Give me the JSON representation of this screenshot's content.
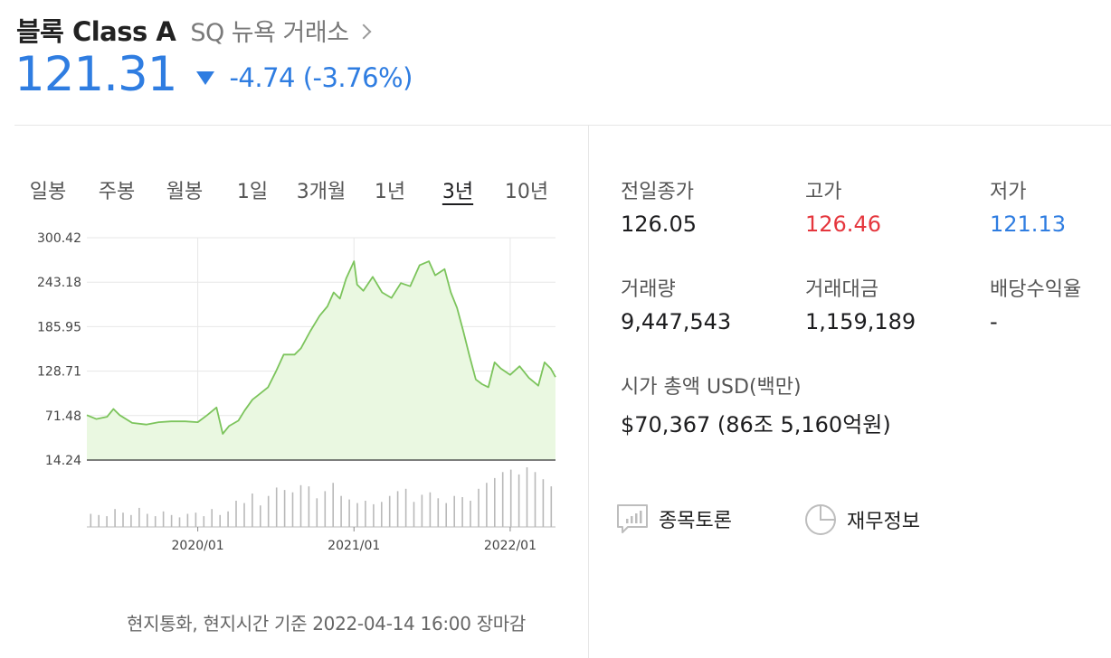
{
  "header": {
    "name": "블록 Class A",
    "exchange": "SQ 뉴욕 거래소",
    "price": "121.31",
    "change": "-4.74 (-3.76%)"
  },
  "tabs": [
    {
      "label": "일봉",
      "active": false
    },
    {
      "label": "주봉",
      "active": false
    },
    {
      "label": "월봉",
      "active": false
    },
    {
      "label": "1일",
      "active": false
    },
    {
      "label": "3개월",
      "active": false
    },
    {
      "label": "1년",
      "active": false
    },
    {
      "label": "3년",
      "active": true
    },
    {
      "label": "10년",
      "active": false
    }
  ],
  "stats": {
    "prev_close": {
      "label": "전일종가",
      "value": "126.05"
    },
    "high": {
      "label": "고가",
      "value": "126.46"
    },
    "low": {
      "label": "저가",
      "value": "121.13"
    },
    "volume": {
      "label": "거래량",
      "value": "9,447,543"
    },
    "turnover": {
      "label": "거래대금",
      "value": "1,159,189"
    },
    "dividend_yield": {
      "label": "배당수익율",
      "value": "-"
    },
    "market_cap": {
      "label": "시가 총액 USD(백만)",
      "value": "$70,367 (86조 5,160억원)"
    }
  },
  "actions": {
    "discussion": "종목토론",
    "financials": "재무정보"
  },
  "footnote": "현지통화, 현지시간 기준 2022-04-14 16:00 장마감",
  "colors": {
    "up": "#e5363d",
    "down": "#2f7de1",
    "line": "#7cc45c",
    "fill": "#eaf8e1"
  },
  "chart_data": {
    "type": "area",
    "y_ticks": [
      "300.42",
      "243.18",
      "185.95",
      "128.71",
      "71.48",
      "14.24"
    ],
    "ylim": [
      14.24,
      300.42
    ],
    "x_ticks": [
      {
        "label": "2020/01",
        "x": 2020.0
      },
      {
        "label": "2021/01",
        "x": 2021.0
      },
      {
        "label": "2022/01",
        "x": 2022.0
      }
    ],
    "xlim": [
      2019.29,
      2022.29
    ],
    "price": [
      [
        2019.29,
        72
      ],
      [
        2019.35,
        67
      ],
      [
        2019.42,
        70
      ],
      [
        2019.46,
        80
      ],
      [
        2019.5,
        72
      ],
      [
        2019.58,
        62
      ],
      [
        2019.67,
        60
      ],
      [
        2019.75,
        63
      ],
      [
        2019.83,
        64
      ],
      [
        2019.92,
        64
      ],
      [
        2020.0,
        63
      ],
      [
        2020.06,
        72
      ],
      [
        2020.12,
        82
      ],
      [
        2020.16,
        48
      ],
      [
        2020.2,
        58
      ],
      [
        2020.26,
        65
      ],
      [
        2020.3,
        78
      ],
      [
        2020.35,
        92
      ],
      [
        2020.4,
        100
      ],
      [
        2020.45,
        108
      ],
      [
        2020.5,
        128
      ],
      [
        2020.55,
        150
      ],
      [
        2020.62,
        150
      ],
      [
        2020.66,
        158
      ],
      [
        2020.72,
        180
      ],
      [
        2020.78,
        200
      ],
      [
        2020.83,
        212
      ],
      [
        2020.87,
        230
      ],
      [
        2020.91,
        222
      ],
      [
        2020.95,
        248
      ],
      [
        2021.0,
        270
      ],
      [
        2021.02,
        240
      ],
      [
        2021.06,
        232
      ],
      [
        2021.12,
        250
      ],
      [
        2021.18,
        230
      ],
      [
        2021.24,
        223
      ],
      [
        2021.3,
        242
      ],
      [
        2021.36,
        238
      ],
      [
        2021.42,
        265
      ],
      [
        2021.48,
        270
      ],
      [
        2021.52,
        252
      ],
      [
        2021.58,
        260
      ],
      [
        2021.62,
        230
      ],
      [
        2021.66,
        210
      ],
      [
        2021.7,
        180
      ],
      [
        2021.74,
        148
      ],
      [
        2021.78,
        118
      ],
      [
        2021.82,
        112
      ],
      [
        2021.86,
        108
      ],
      [
        2021.9,
        140
      ],
      [
        2021.94,
        132
      ],
      [
        2022.0,
        124
      ],
      [
        2022.06,
        135
      ],
      [
        2022.12,
        120
      ],
      [
        2022.18,
        110
      ],
      [
        2022.22,
        140
      ],
      [
        2022.26,
        132
      ],
      [
        2022.29,
        121
      ]
    ],
    "volume_scale": [
      0,
      100
    ],
    "volume": [
      22,
      20,
      18,
      30,
      24,
      20,
      32,
      22,
      18,
      26,
      20,
      16,
      22,
      24,
      18,
      30,
      20,
      26,
      44,
      40,
      56,
      36,
      52,
      66,
      62,
      58,
      70,
      68,
      48,
      60,
      74,
      52,
      46,
      40,
      44,
      38,
      42,
      52,
      60,
      64,
      42,
      54,
      58,
      48,
      40,
      52,
      50,
      44,
      64,
      74,
      82,
      92,
      96,
      88,
      100,
      92,
      80,
      68
    ]
  }
}
